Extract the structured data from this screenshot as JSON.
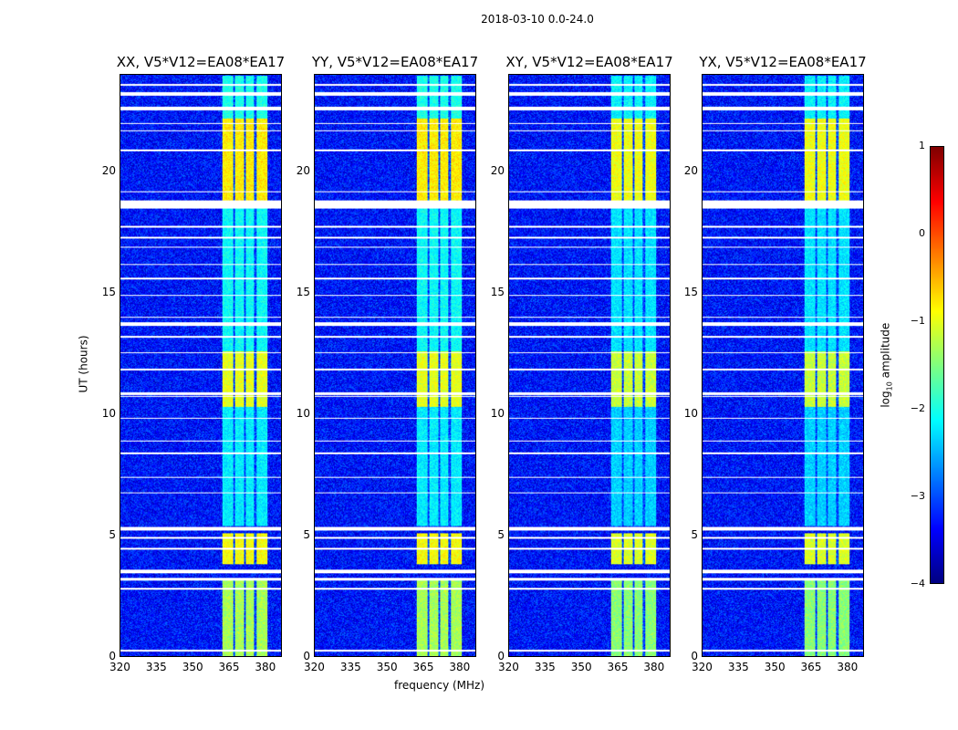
{
  "chart_data": {
    "type": "heatmap",
    "title": "2018-03-10 0.0-24.0",
    "xlabel": "frequency (MHz)",
    "ylabel": "UT (hours)",
    "xlim": [
      320,
      387
    ],
    "ylim": [
      0,
      24
    ],
    "xticks": [
      320,
      335,
      350,
      365,
      380
    ],
    "yticks": [
      0,
      5,
      10,
      15,
      20
    ],
    "panels": [
      {
        "title": "XX, V5*V12=EA08*EA17"
      },
      {
        "title": "YY, V5*V12=EA08*EA17"
      },
      {
        "title": "XY, V5*V12=EA08*EA17"
      },
      {
        "title": "YX, V5*V12=EA08*EA17"
      }
    ],
    "colorbar": {
      "label_main": "log",
      "label_sub": "10",
      "label_rest": " amplitude",
      "range": [
        -4,
        1
      ],
      "ticks": [
        "1",
        "0",
        "−1",
        "−2",
        "−3",
        "−4"
      ],
      "tick_values": [
        1,
        0,
        -1,
        -2,
        -3,
        -4
      ],
      "colormap": "jet"
    },
    "background_level": -3.3,
    "rfi_band_mhz": [
      362.5,
      381
    ],
    "rfi_subband_gaps_mhz": [
      367.3,
      371.8,
      376.2
    ],
    "rfi_episodes": [
      {
        "ut": [
          0,
          3.2
        ],
        "level": -1.3
      },
      {
        "ut": [
          3.8,
          5.1
        ],
        "level": -0.9
      },
      {
        "ut": [
          5.4,
          10.3
        ],
        "level": -2.2
      },
      {
        "ut": [
          10.3,
          12.6
        ],
        "level": -1.0
      },
      {
        "ut": [
          12.6,
          18.5
        ],
        "level": -2.1
      },
      {
        "ut": [
          18.8,
          22.2
        ],
        "level": -0.8
      },
      {
        "ut": [
          22.2,
          24
        ],
        "level": -2.0
      }
    ],
    "flagged_ut": [
      [
        18.5,
        18.85
      ],
      [
        3.45,
        3.6
      ],
      [
        5.2,
        5.35
      ],
      [
        13.65,
        13.8
      ],
      [
        22.55,
        22.7
      ],
      [
        23.15,
        23.3
      ],
      [
        10.8,
        10.9
      ],
      [
        3.15,
        3.25
      ]
    ],
    "flag_lines_ut": [
      0.25,
      2.8,
      4.45,
      4.9,
      6.75,
      7.4,
      8.4,
      8.9,
      9.85,
      10.75,
      11.85,
      12.55,
      13.2,
      14.0,
      14.9,
      15.6,
      16.2,
      16.9,
      17.3,
      17.75,
      19.2,
      20.9,
      21.7,
      22.0,
      23.6
    ]
  }
}
